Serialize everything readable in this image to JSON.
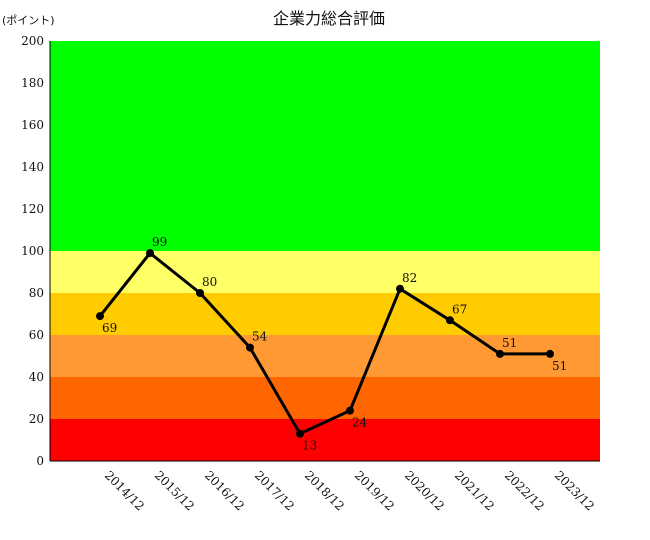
{
  "chart_data": {
    "type": "line",
    "title": "企業力総合評価",
    "ylabel": "(ポイント)",
    "xlabel": "",
    "ylim": [
      0,
      200
    ],
    "yticks": [
      "0",
      "20",
      "40",
      "60",
      "80",
      "100",
      "120",
      "140",
      "160",
      "180",
      "200"
    ],
    "categories": [
      "2014/12",
      "2015/12",
      "2016/12",
      "2017/12",
      "2018/12",
      "2019/12",
      "2020/12",
      "2021/12",
      "2022/12",
      "2023/12"
    ],
    "values": [
      69,
      99,
      80,
      54,
      13,
      24,
      82,
      67,
      51,
      51
    ],
    "label_positions": [
      "below",
      "above",
      "above",
      "above",
      "below",
      "below",
      "above",
      "above",
      "above",
      "below"
    ],
    "bands": [
      {
        "from": 0,
        "to": 20,
        "color": "#ff0000"
      },
      {
        "from": 20,
        "to": 40,
        "color": "#ff6600"
      },
      {
        "from": 40,
        "to": 60,
        "color": "#ff9933"
      },
      {
        "from": 60,
        "to": 80,
        "color": "#ffcc00"
      },
      {
        "from": 80,
        "to": 100,
        "color": "#ffff66"
      },
      {
        "from": 100,
        "to": 200,
        "color": "#00ff00"
      }
    ],
    "line_color": "#000000",
    "grid": false,
    "legend": "none"
  }
}
